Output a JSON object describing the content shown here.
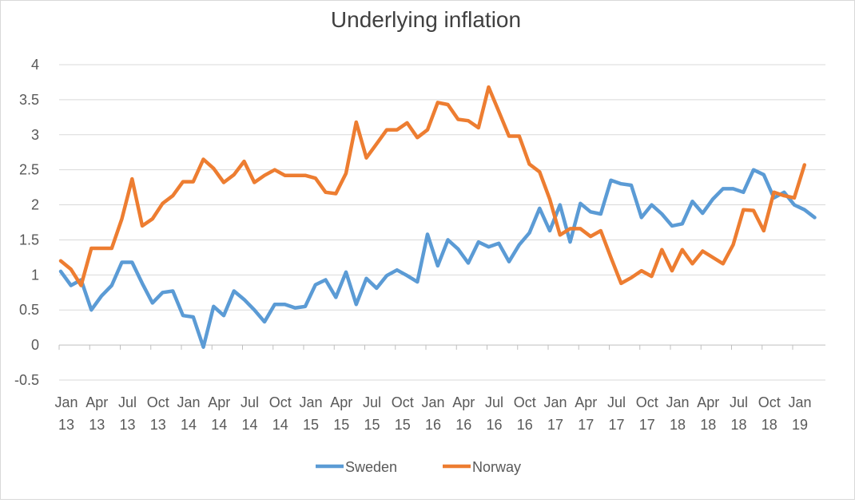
{
  "chart_data": {
    "type": "line",
    "title": "Underlying inflation",
    "xlabel": "",
    "ylabel": "",
    "ylim": [
      -0.5,
      4
    ],
    "y_ticks": [
      "-0.5",
      "0",
      "0.5",
      "1",
      "1.5",
      "2",
      "2.5",
      "3",
      "3.5",
      "4"
    ],
    "x_tick_labels": [
      [
        "Jan",
        "13"
      ],
      [
        "Apr",
        "13"
      ],
      [
        "Jul",
        "13"
      ],
      [
        "Oct",
        "13"
      ],
      [
        "Jan",
        "14"
      ],
      [
        "Apr",
        "14"
      ],
      [
        "Jul",
        "14"
      ],
      [
        "Oct",
        "14"
      ],
      [
        "Jan",
        "15"
      ],
      [
        "Apr",
        "15"
      ],
      [
        "Jul",
        "15"
      ],
      [
        "Oct",
        "15"
      ],
      [
        "Jan",
        "16"
      ],
      [
        "Apr",
        "16"
      ],
      [
        "Jul",
        "16"
      ],
      [
        "Oct",
        "16"
      ],
      [
        "Jan",
        "17"
      ],
      [
        "Apr",
        "17"
      ],
      [
        "Jul",
        "17"
      ],
      [
        "Oct",
        "17"
      ],
      [
        "Jan",
        "18"
      ],
      [
        "Apr",
        "18"
      ],
      [
        "Jul",
        "18"
      ],
      [
        "Oct",
        "18"
      ],
      [
        "Jan",
        "19"
      ]
    ],
    "x_start": "Jan 2013",
    "x_frequency": "monthly",
    "grid": true,
    "legend_position": "bottom",
    "series": [
      {
        "name": "Sweden",
        "color": "#5b9bd5",
        "values": [
          1.05,
          0.85,
          0.93,
          0.5,
          0.7,
          0.85,
          1.18,
          1.18,
          0.88,
          0.6,
          0.75,
          0.77,
          0.42,
          0.4,
          -0.03,
          0.55,
          0.42,
          0.77,
          0.65,
          0.5,
          0.33,
          0.58,
          0.58,
          0.53,
          0.55,
          0.86,
          0.93,
          0.68,
          1.04,
          0.58,
          0.95,
          0.81,
          0.99,
          1.07,
          0.99,
          0.9,
          1.58,
          1.13,
          1.5,
          1.37,
          1.17,
          1.47,
          1.4,
          1.45,
          1.19,
          1.43,
          1.6,
          1.95,
          1.63,
          2.0,
          1.47,
          2.02,
          1.9,
          1.87,
          2.35,
          2.3,
          2.28,
          1.82,
          2.0,
          1.87,
          1.7,
          1.73,
          2.05,
          1.88,
          2.08,
          2.23,
          2.23,
          2.18,
          2.5,
          2.43,
          2.1,
          2.18,
          2.0,
          1.93,
          1.82
        ]
      },
      {
        "name": "Norway",
        "color": "#ed7d31",
        "values": [
          1.2,
          1.08,
          0.85,
          1.38,
          1.38,
          1.38,
          1.8,
          2.37,
          1.7,
          1.8,
          2.02,
          2.13,
          2.33,
          2.33,
          2.65,
          2.52,
          2.32,
          2.43,
          2.62,
          2.32,
          2.42,
          2.5,
          2.42,
          2.42,
          2.42,
          2.38,
          2.18,
          2.16,
          2.45,
          3.18,
          2.67,
          2.87,
          3.07,
          3.07,
          3.17,
          2.96,
          3.07,
          3.46,
          3.43,
          3.22,
          3.2,
          3.1,
          3.68,
          3.33,
          2.98,
          2.98,
          2.58,
          2.47,
          2.08,
          1.57,
          1.66,
          1.66,
          1.55,
          1.63,
          1.25,
          0.88,
          0.96,
          1.06,
          0.98,
          1.36,
          1.06,
          1.36,
          1.16,
          1.34,
          1.25,
          1.16,
          1.43,
          1.93,
          1.92,
          1.63,
          2.18,
          2.13,
          2.1,
          2.57
        ]
      }
    ]
  }
}
